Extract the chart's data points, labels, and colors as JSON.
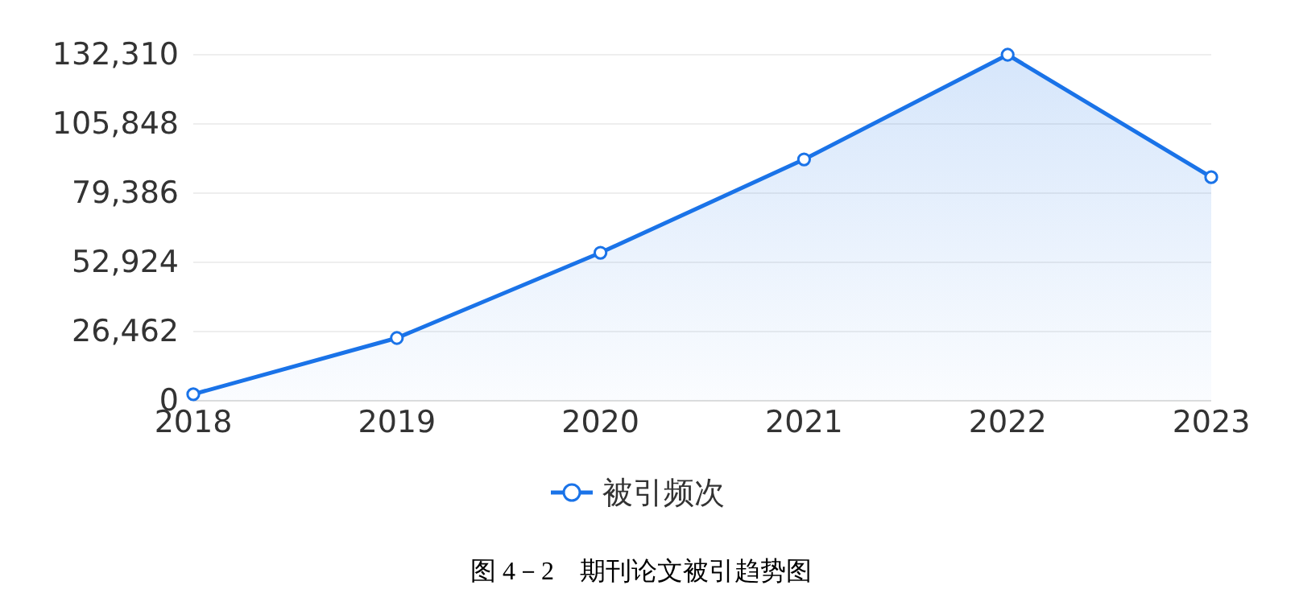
{
  "chart_data": {
    "type": "area",
    "categories": [
      "2018",
      "2019",
      "2020",
      "2021",
      "2022",
      "2023"
    ],
    "series": [
      {
        "name": "被引频次",
        "color": "#1a73e8",
        "values": [
          2500,
          24000,
          56600,
          92300,
          132310,
          85500
        ]
      }
    ],
    "ylim": [
      0,
      132310
    ],
    "yticks": [
      0,
      {
        "value": 26462,
        "label": "26,462"
      },
      {
        "value": 52924,
        "label": "52,924"
      },
      {
        "value": 79386,
        "label": "79,386"
      },
      {
        "value": 105848,
        "label": "105,848"
      },
      {
        "value": 132310,
        "label": "132,310"
      }
    ],
    "grid": "y",
    "legend": "bottom",
    "marker": "circle",
    "line_style": "solid",
    "annotations": [
      "图 4－2　期刊论文被引趋势图"
    ]
  }
}
